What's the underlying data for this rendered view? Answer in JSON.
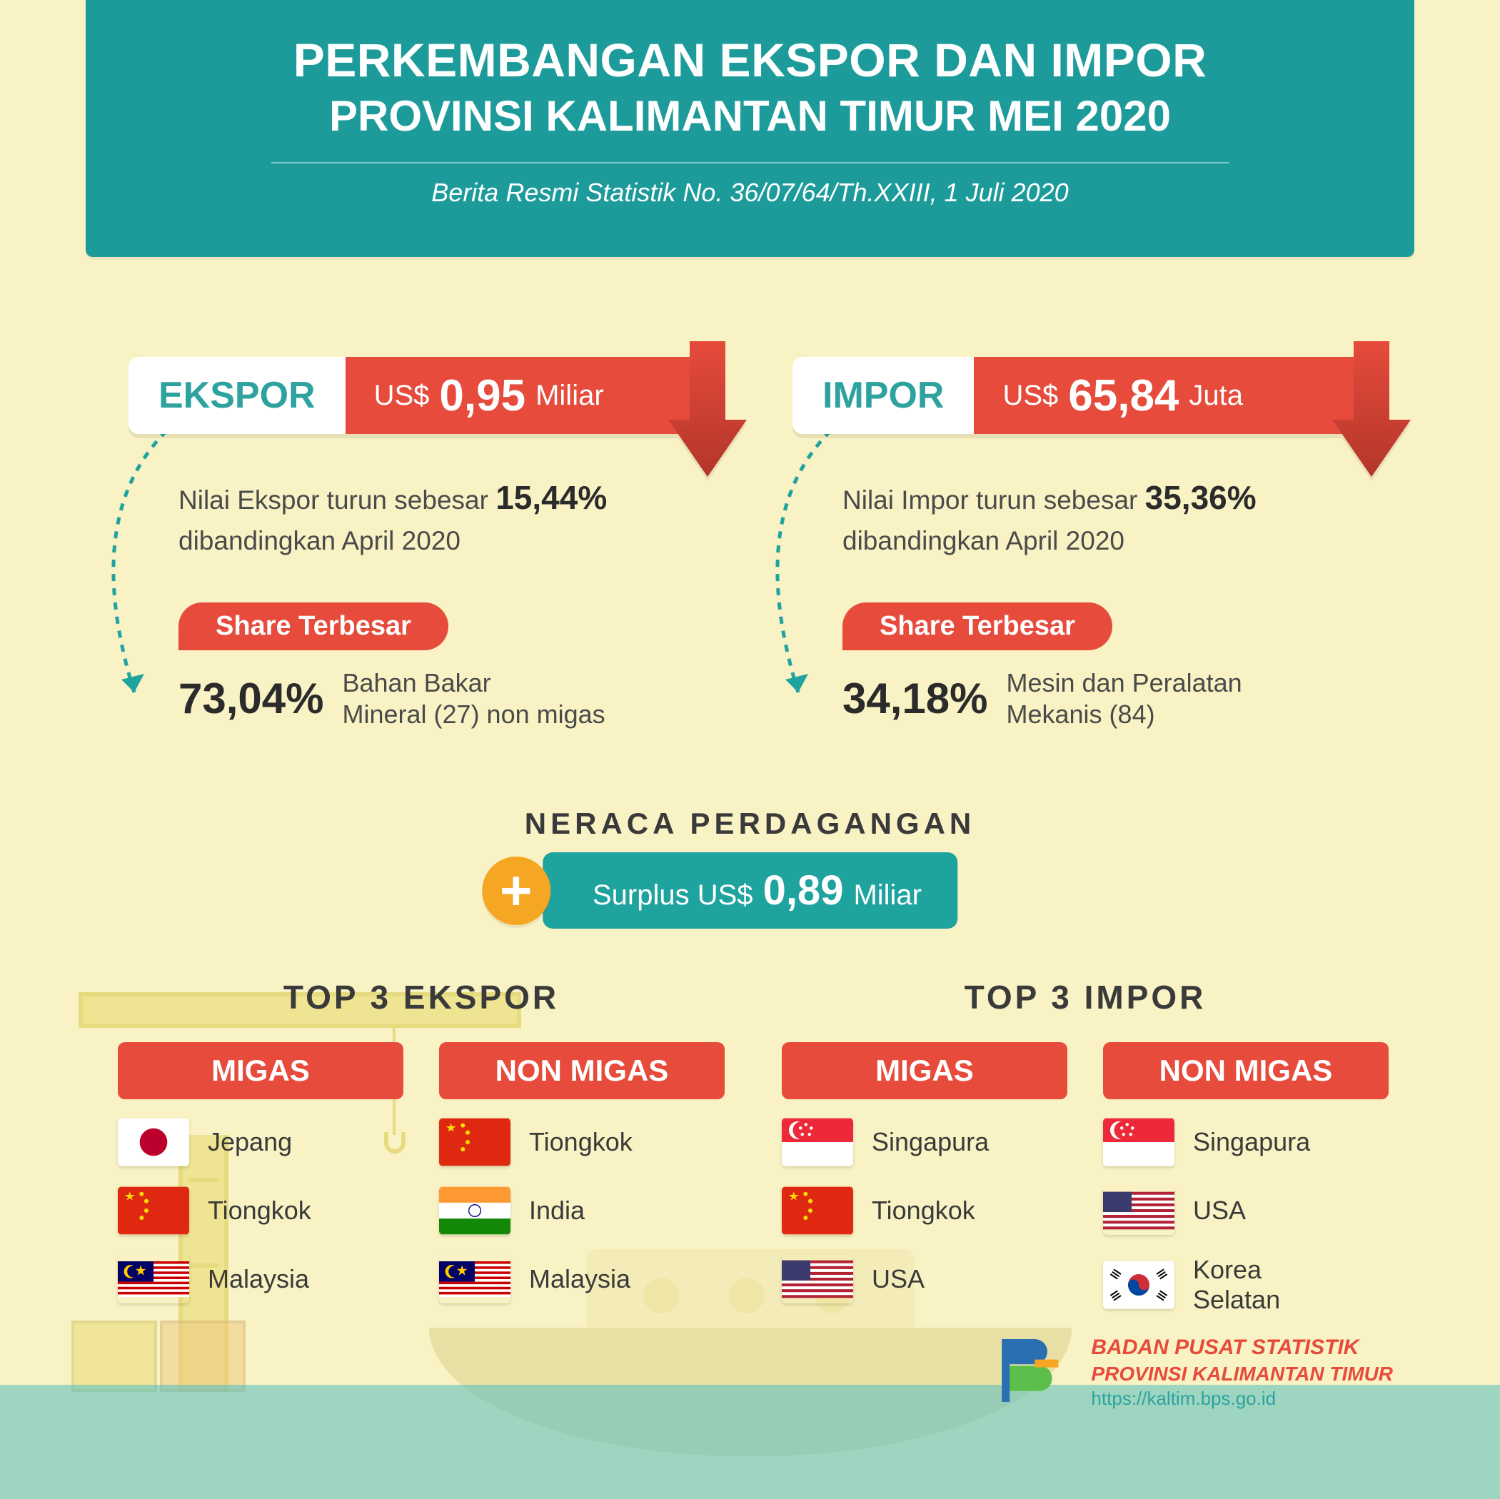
{
  "colors": {
    "bg": "#f9f2c4",
    "teal": "#1d9b9b",
    "tealLight": "#2ea29f",
    "red": "#e64b3c",
    "orange": "#f5a623",
    "text": "#3a3a3a"
  },
  "header": {
    "line1": "PERKEMBANGAN EKSPOR DAN IMPOR",
    "line2": "PROVINSI KALIMANTAN TIMUR MEI 2020",
    "subtitle": "Berita Resmi Statistik No. 36/07/64/Th.XXIII, 1 Juli 2020"
  },
  "ekspor": {
    "label": "EKSPOR",
    "currency": "US$",
    "amount": "0,95",
    "unit": "Miliar",
    "desc_prefix": "Nilai Ekspor turun sebesar ",
    "desc_pct": "15,44%",
    "desc_suffix": " dibandingkan April 2020",
    "share_label": "Share Terbesar",
    "share_pct": "73,04%",
    "share_text": "Bahan Bakar\nMineral (27) non migas"
  },
  "impor": {
    "label": "IMPOR",
    "currency": "US$",
    "amount": "65,84",
    "unit": "Juta",
    "desc_prefix": "Nilai Impor turun sebesar ",
    "desc_pct": "35,36%",
    "desc_suffix": " dibandingkan April 2020",
    "share_label": "Share Terbesar",
    "share_pct": "34,18%",
    "share_text": "Mesin dan Peralatan\nMekanis (84)"
  },
  "neraca": {
    "title": "NERACA PERDAGANGAN",
    "prefix": "Surplus US$",
    "amount": "0,89",
    "unit": "Miliar",
    "plus": "+"
  },
  "top3": {
    "ekspor": {
      "title": "TOP 3 EKSPOR",
      "migas": {
        "label": "MIGAS",
        "items": [
          {
            "flag": "jp",
            "name": "Jepang"
          },
          {
            "flag": "cn",
            "name": "Tiongkok"
          },
          {
            "flag": "my",
            "name": "Malaysia"
          }
        ]
      },
      "nonmigas": {
        "label": "NON MIGAS",
        "items": [
          {
            "flag": "cn",
            "name": "Tiongkok"
          },
          {
            "flag": "in",
            "name": "India"
          },
          {
            "flag": "my",
            "name": "Malaysia"
          }
        ]
      }
    },
    "impor": {
      "title": "TOP 3 IMPOR",
      "migas": {
        "label": "MIGAS",
        "items": [
          {
            "flag": "sg",
            "name": "Singapura"
          },
          {
            "flag": "cn",
            "name": "Tiongkok"
          },
          {
            "flag": "us",
            "name": "USA"
          }
        ]
      },
      "nonmigas": {
        "label": "NON MIGAS",
        "items": [
          {
            "flag": "sg",
            "name": "Singapura"
          },
          {
            "flag": "us",
            "name": "USA"
          },
          {
            "flag": "kr",
            "name": "Korea\nSelatan"
          }
        ]
      }
    }
  },
  "footer": {
    "line1": "BADAN PUSAT STATISTIK",
    "line2": "PROVINSI KALIMANTAN TIMUR",
    "url": "https://kaltim.bps.go.id"
  }
}
